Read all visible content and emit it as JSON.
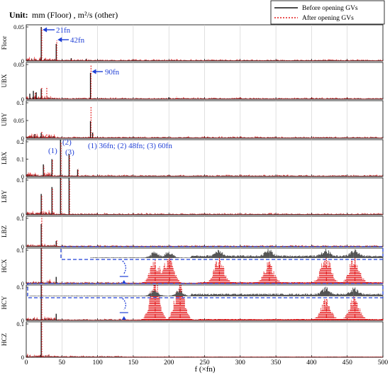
{
  "header": {
    "unit_label": "Unit:",
    "unit_text": "mm (Floor) , m²/s (other)"
  },
  "legend": {
    "before": "Before opening GVs",
    "after": "After opening GVs"
  },
  "colors": {
    "before": "#111111",
    "after": "#e41a1c",
    "annotation": "#1f3fd6",
    "grid": "#cccccc",
    "inset": "#555555"
  },
  "chart_data": {
    "type": "line",
    "xlabel": "f (×fn)",
    "xlim": [
      0,
      500
    ],
    "xticks": [
      "0",
      "50",
      "100",
      "150",
      "200",
      "250",
      "300",
      "350",
      "400",
      "450",
      "500"
    ],
    "grid": "vertical",
    "legend_position": "top-right",
    "series_names": [
      "Before opening GVs",
      "After opening GVs"
    ],
    "panels": [
      {
        "name": "Floor",
        "ylim": [
          0,
          0.05
        ],
        "yticks": [
          "0",
          "0.05"
        ],
        "peaks_before": [
          [
            21,
            0.05
          ],
          [
            42,
            0.025
          ],
          [
            63,
            0.004
          ],
          [
            84,
            0.003
          ]
        ],
        "peaks_after": [
          [
            21,
            0.048
          ],
          [
            42,
            0.03
          ],
          [
            63,
            0.004
          ],
          [
            84,
            0.004
          ]
        ],
        "annotations": [
          "21fn",
          "42fn"
        ]
      },
      {
        "name": "UBX",
        "ylim": [
          0,
          0.05
        ],
        "yticks": [
          "0",
          "0.05"
        ],
        "peaks_before": [
          [
            5,
            0.008
          ],
          [
            10,
            0.012
          ],
          [
            14,
            0.01
          ],
          [
            21,
            0.015
          ],
          [
            90,
            0.038
          ],
          [
            200,
            0.003
          ]
        ],
        "peaks_after": [
          [
            12,
            0.01
          ],
          [
            21,
            0.017
          ],
          [
            28,
            0.018
          ],
          [
            90,
            0.05
          ],
          [
            210,
            0.004
          ]
        ],
        "annotations": [
          "90fn"
        ]
      },
      {
        "name": "UBY",
        "ylim": [
          0,
          0.1
        ],
        "yticks": [
          "0",
          "0.05",
          "0.1"
        ],
        "peaks_before": [
          [
            12,
            0.012
          ],
          [
            21,
            0.015
          ],
          [
            90,
            0.048
          ],
          [
            93,
            0.016
          ]
        ],
        "peaks_after": [
          [
            12,
            0.014
          ],
          [
            21,
            0.02
          ],
          [
            28,
            0.012
          ],
          [
            90,
            0.09
          ],
          [
            93,
            0.015
          ]
        ],
        "annotations": []
      },
      {
        "name": "LBX",
        "ylim": [
          0,
          0.2
        ],
        "yticks": [
          "0",
          "0.1",
          "0.2"
        ],
        "peaks_before": [
          [
            24,
            0.07
          ],
          [
            36,
            0.1
          ],
          [
            48,
            0.22
          ],
          [
            60,
            0.13
          ],
          [
            72,
            0.04
          ]
        ],
        "peaks_after": [
          [
            24,
            0.06
          ],
          [
            36,
            0.1
          ],
          [
            48,
            0.2
          ],
          [
            60,
            0.12
          ],
          [
            72,
            0.045
          ]
        ],
        "annotations": [
          "(1)",
          "(2)",
          "(3)",
          "(1) 36fn; (2) 48fn; (3) 60fn"
        ]
      },
      {
        "name": "LBY",
        "ylim": [
          0,
          0.1
        ],
        "yticks": [
          "0",
          "0.1"
        ],
        "peaks_before": [
          [
            21,
            0.06
          ],
          [
            36,
            0.08
          ],
          [
            48,
            0.145
          ],
          [
            60,
            0.12
          ]
        ],
        "peaks_after": [
          [
            21,
            0.055
          ],
          [
            36,
            0.075
          ],
          [
            48,
            0.12
          ],
          [
            60,
            0.1
          ]
        ],
        "annotations": []
      },
      {
        "name": "LBZ",
        "ylim": [
          0,
          0.1
        ],
        "yticks": [
          "0",
          "0.1"
        ],
        "peaks_before": [
          [
            21,
            0.08
          ],
          [
            42,
            0.02
          ]
        ],
        "peaks_after": [
          [
            21,
            0.115
          ],
          [
            42,
            0.025
          ]
        ],
        "annotations": []
      },
      {
        "name": "HCX",
        "ylim": [
          0,
          0.1
        ],
        "yticks": [
          "0",
          "0.1"
        ],
        "peaks_before": [
          [
            21,
            0.12
          ],
          [
            42,
            0.02
          ]
        ],
        "peaks_after": [
          [
            21,
            0.11
          ],
          [
            180,
            0.07
          ],
          [
            200,
            0.085
          ],
          [
            270,
            0.08
          ],
          [
            340,
            0.065
          ],
          [
            420,
            0.09
          ],
          [
            460,
            0.085
          ]
        ],
        "annotations": []
      },
      {
        "name": "HCY",
        "ylim": [
          0,
          0.1
        ],
        "yticks": [
          "0",
          "0.1"
        ],
        "peaks_before": [
          [
            21,
            0.12
          ],
          [
            42,
            0.02
          ]
        ],
        "peaks_after": [
          [
            21,
            0.11
          ],
          [
            180,
            0.14
          ],
          [
            215,
            0.13
          ],
          [
            420,
            0.065
          ],
          [
            460,
            0.07
          ]
        ],
        "annotations": []
      },
      {
        "name": "HCZ",
        "ylim": [
          0,
          0.1
        ],
        "yticks": [
          "0",
          "0.1"
        ],
        "peaks_before": [
          [
            21,
            0.18
          ]
        ],
        "peaks_after": [
          [
            21,
            0.17
          ]
        ],
        "annotations": []
      }
    ]
  }
}
